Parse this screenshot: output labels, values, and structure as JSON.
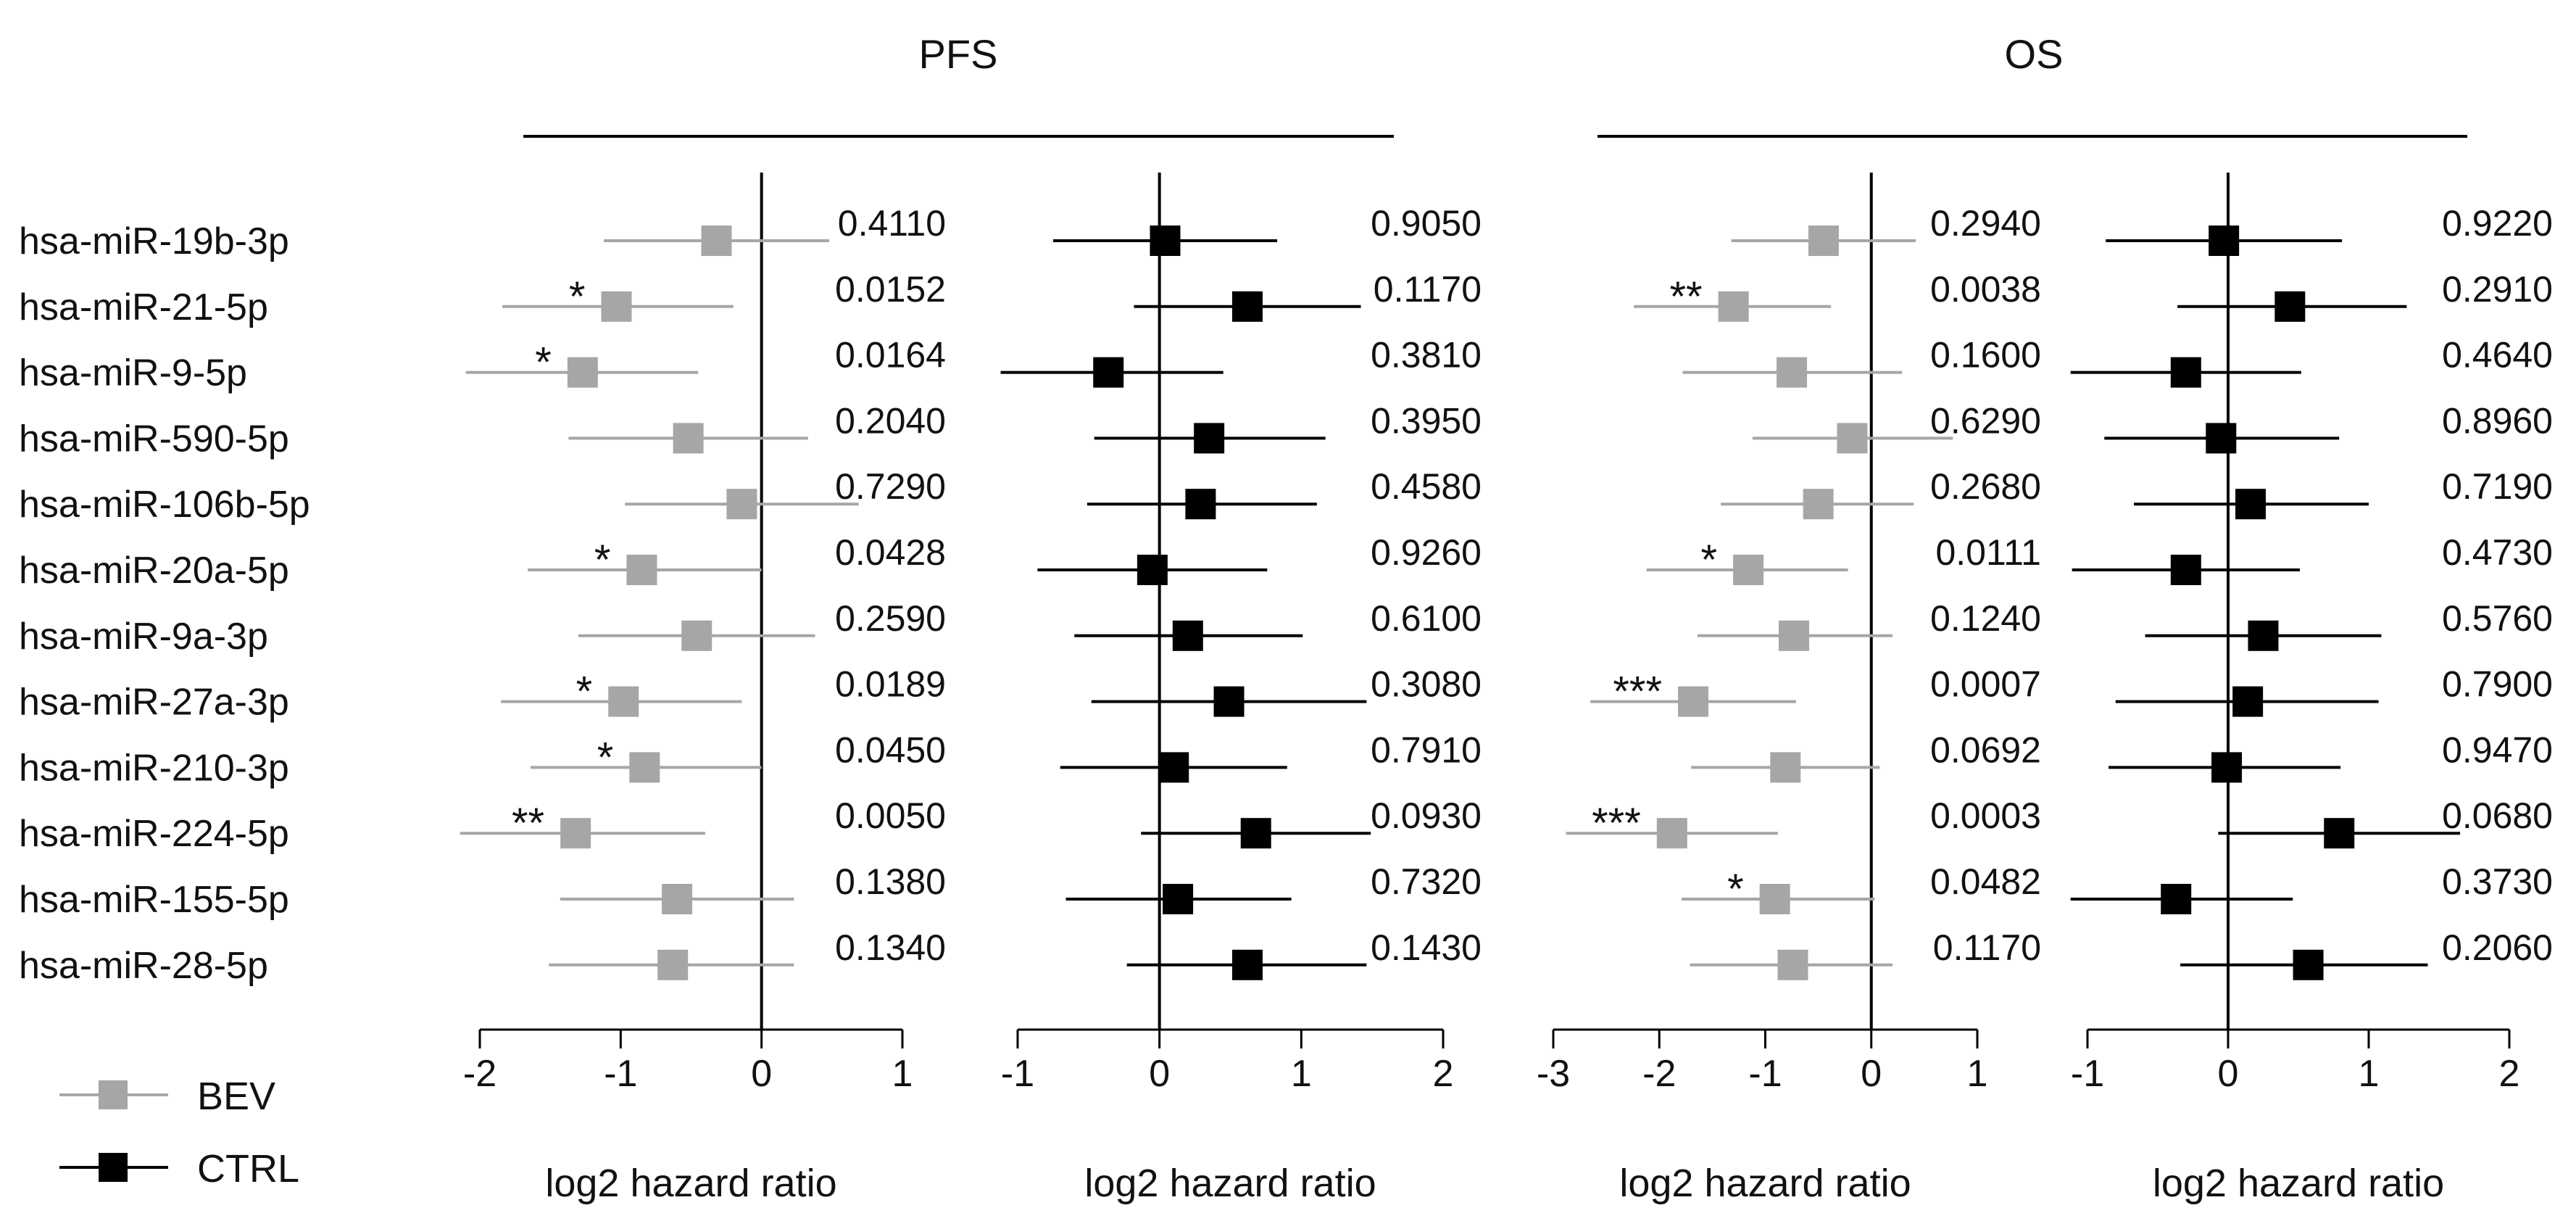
{
  "chart_data": {
    "type": "forest",
    "mirnas": [
      "hsa-miR-19b-3p",
      "hsa-miR-21-5p",
      "hsa-miR-9-5p",
      "hsa-miR-590-5p",
      "hsa-miR-106b-5p",
      "hsa-miR-20a-5p",
      "hsa-miR-9a-3p",
      "hsa-miR-27a-3p",
      "hsa-miR-210-3p",
      "hsa-miR-224-5p",
      "hsa-miR-155-5p",
      "hsa-miR-28-5p"
    ],
    "legend": [
      {
        "label": "BEV",
        "color": "#a6a6a6"
      },
      {
        "label": "CTRL",
        "color": "#000000"
      }
    ],
    "groups": [
      {
        "title": "PFS",
        "panels": [
          "PFS_BEV",
          "PFS_CTRL"
        ]
      },
      {
        "title": "OS",
        "panels": [
          "OS_BEV",
          "OS_CTRL"
        ]
      }
    ],
    "panels": [
      {
        "id": "PFS_BEV",
        "series": "BEV",
        "color": "#a6a6a6",
        "xlabel": "log2 hazard ratio",
        "xlim": [
          -2,
          1
        ],
        "ticks": [
          -2,
          -1,
          0,
          1
        ],
        "estimates": [
          -0.32,
          -1.03,
          -1.27,
          -0.52,
          -0.14,
          -0.85,
          -0.46,
          -0.98,
          -0.83,
          -1.32,
          -0.6,
          -0.63
        ],
        "lower": [
          -1.12,
          -1.84,
          -2.1,
          -1.37,
          -0.97,
          -1.66,
          -1.3,
          -1.85,
          -1.64,
          -2.14,
          -1.43,
          -1.51
        ],
        "upper": [
          0.48,
          -0.2,
          -0.45,
          0.33,
          0.69,
          0.0,
          0.38,
          -0.14,
          0.0,
          -0.4,
          0.23,
          0.23
        ],
        "pvalues": [
          "0.4110",
          "0.0152",
          "0.0164",
          "0.2040",
          "0.7290",
          "0.0428",
          "0.2590",
          "0.0189",
          "0.0450",
          "0.0050",
          "0.1380",
          "0.1340"
        ],
        "significance": [
          "",
          "*",
          "*",
          "",
          "",
          "*",
          "",
          "*",
          "*",
          "**",
          "",
          ""
        ]
      },
      {
        "id": "PFS_CTRL",
        "series": "CTRL",
        "color": "#000000",
        "xlabel": "log2 hazard ratio",
        "xlim": [
          -1,
          2
        ],
        "ticks": [
          -1,
          0,
          1,
          2
        ],
        "estimates": [
          0.04,
          0.62,
          -0.36,
          0.35,
          0.29,
          -0.05,
          0.2,
          0.49,
          0.1,
          0.68,
          0.13,
          0.62
        ],
        "lower": [
          -0.75,
          -0.18,
          -1.12,
          -0.46,
          -0.51,
          -0.86,
          -0.6,
          -0.48,
          -0.7,
          -0.13,
          -0.66,
          -0.23
        ],
        "upper": [
          0.83,
          1.42,
          0.45,
          1.17,
          1.11,
          0.76,
          1.01,
          1.46,
          0.9,
          1.49,
          0.93,
          1.46
        ],
        "pvalues": [
          "0.9050",
          "0.1170",
          "0.3810",
          "0.3950",
          "0.4580",
          "0.9260",
          "0.6100",
          "0.3080",
          "0.7910",
          "0.0930",
          "0.7320",
          "0.1430"
        ],
        "significance": [
          "",
          "",
          "",
          "",
          "",
          "",
          "",
          "",
          "",
          "",
          "",
          ""
        ]
      },
      {
        "id": "OS_BEV",
        "series": "BEV",
        "color": "#a6a6a6",
        "xlabel": "log2 hazard ratio",
        "xlim": [
          -3,
          1
        ],
        "ticks": [
          -3,
          -2,
          -1,
          0,
          1
        ],
        "estimates": [
          -0.45,
          -1.3,
          -0.75,
          -0.18,
          -0.5,
          -1.16,
          -0.73,
          -1.68,
          -0.81,
          -1.88,
          -0.91,
          -0.74
        ],
        "lower": [
          -1.32,
          -2.24,
          -1.78,
          -1.12,
          -1.42,
          -2.12,
          -1.64,
          -2.65,
          -1.7,
          -2.88,
          -1.79,
          -1.71
        ],
        "upper": [
          0.42,
          -0.38,
          0.29,
          0.77,
          0.4,
          -0.22,
          0.2,
          -0.71,
          0.08,
          -0.88,
          0.03,
          0.2
        ],
        "pvalues": [
          "0.2940",
          "0.0038",
          "0.1600",
          "0.6290",
          "0.2680",
          "0.0111",
          "0.1240",
          "0.0007",
          "0.0692",
          "0.0003",
          "0.0482",
          "0.1170"
        ],
        "significance": [
          "",
          "**",
          "",
          "",
          "",
          "*",
          "",
          "***",
          "",
          "***",
          "*",
          ""
        ]
      },
      {
        "id": "OS_CTRL",
        "series": "CTRL",
        "color": "#000000",
        "xlabel": "log2 hazard ratio",
        "xlim": [
          -1,
          2
        ],
        "ticks": [
          -1,
          0,
          1,
          2
        ],
        "estimates": [
          -0.03,
          0.44,
          -0.3,
          -0.05,
          0.16,
          -0.3,
          0.25,
          0.14,
          -0.01,
          0.79,
          -0.37,
          0.57
        ],
        "lower": [
          -0.87,
          -0.36,
          -1.12,
          -0.88,
          -0.67,
          -1.11,
          -0.59,
          -0.8,
          -0.85,
          -0.07,
          -1.12,
          -0.34
        ],
        "upper": [
          0.81,
          1.27,
          0.52,
          0.79,
          1.0,
          0.51,
          1.09,
          1.07,
          0.8,
          1.65,
          0.46,
          1.42
        ],
        "pvalues": [
          "0.9220",
          "0.2910",
          "0.4640",
          "0.8960",
          "0.7190",
          "0.4730",
          "0.5760",
          "0.7900",
          "0.9470",
          "0.0680",
          "0.3730",
          "0.2060"
        ],
        "significance": [
          "",
          "",
          "",
          "",
          "",
          "",
          "",
          "",
          "",
          "",
          "",
          ""
        ]
      }
    ]
  }
}
